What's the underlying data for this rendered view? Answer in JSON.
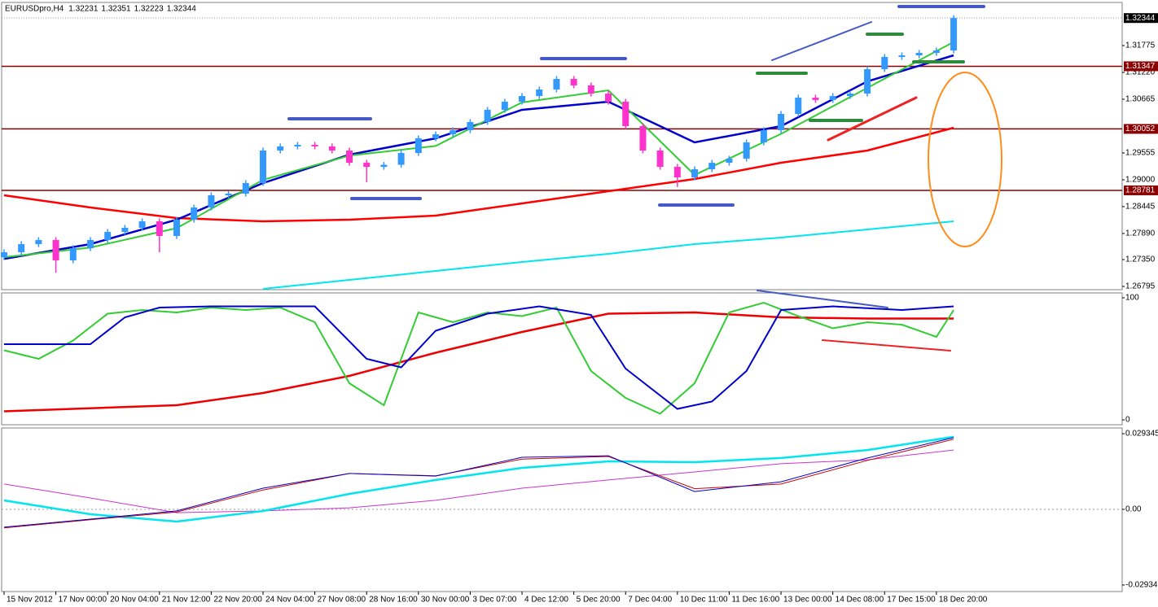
{
  "chart_data": [
    {
      "type": "candlestick",
      "symbol": "EURUSDpro,H4",
      "ohlc": [
        1.32231,
        1.32351,
        1.32223,
        1.32344
      ],
      "xlim": [
        -0.14,
        64.76
      ],
      "xticks": [
        {
          "value": 0,
          "label": "15 Nov 2012"
        },
        {
          "value": 3,
          "label": "17 Nov 00:00"
        },
        {
          "value": 6,
          "label": "20 Nov 04:00"
        },
        {
          "value": 9,
          "label": "21 Nov 12:00"
        },
        {
          "value": 12,
          "label": "22 Nov 20:00"
        },
        {
          "value": 15,
          "label": "24 Nov 04:00"
        },
        {
          "value": 18,
          "label": "27 Nov 08:00"
        },
        {
          "value": 21,
          "label": "28 Nov 16:00"
        },
        {
          "value": 24,
          "label": "30 Nov 00:00"
        },
        {
          "value": 27,
          "label": "3 Dec 07:00"
        },
        {
          "value": 30,
          "label": "4 Dec 12:00"
        },
        {
          "value": 33,
          "label": "5 Dec 20:00"
        },
        {
          "value": 36,
          "label": "7 Dec 04:00"
        },
        {
          "value": 39,
          "label": "10 Dec 11:00"
        },
        {
          "value": 42,
          "label": "11 Dec 16:00"
        },
        {
          "value": 45,
          "label": "13 Dec 00:00"
        },
        {
          "value": 48,
          "label": "14 Dec 08:00"
        },
        {
          "value": 51,
          "label": "17 Dec 15:00"
        },
        {
          "value": 54,
          "label": "18 Dec 20:00"
        }
      ],
      "ylim": [
        1.26728,
        1.32667
      ],
      "yticks": [
        1.31775,
        {
          "value": 1.3122,
          "label": "1.31220"
        },
        1.30665,
        1.29555,
        {
          "value": 1.29,
          "label": "1.29000"
        },
        1.28445,
        {
          "value": 1.2789,
          "label": "1.27890"
        },
        {
          "value": 1.2735,
          "label": "1.27350"
        },
        1.26795
      ],
      "open": [
        1.274,
        1.27502,
        1.2767,
        1.27754,
        1.27334,
        1.27586,
        1.27754,
        1.27922,
        1.28007,
        1.28141,
        1.27838,
        1.28175,
        1.28427,
        1.2868,
        1.28713,
        1.28932,
        1.29605,
        1.29689,
        1.29723,
        1.2969,
        1.29605,
        1.29352,
        1.29268,
        1.2931,
        1.29554,
        1.29857,
        1.29941,
        1.30025,
        1.30194,
        1.30446,
        1.30614,
        1.30732,
        1.30867,
        1.31085,
        1.30951,
        1.30782,
        1.30614,
        1.3011,
        1.29605,
        1.29268,
        1.2905,
        1.29218,
        1.29352,
        1.29437,
        1.29773,
        1.30025,
        1.30362,
        1.30698,
        1.3065,
        1.30732,
        1.30782,
        1.31287,
        1.3154,
        1.31573,
        1.31624,
        1.31674
      ],
      "high": [
        1.27562,
        1.2773,
        1.27814,
        1.27814,
        1.27646,
        1.27814,
        1.27982,
        1.28067,
        1.28201,
        1.28201,
        1.28235,
        1.28487,
        1.2874,
        1.28773,
        1.28992,
        1.29665,
        1.29749,
        1.29783,
        1.29783,
        1.2975,
        1.29665,
        1.29412,
        1.2937,
        1.29614,
        1.29917,
        1.30001,
        1.30085,
        1.30254,
        1.30506,
        1.30674,
        1.30792,
        1.30927,
        1.31145,
        1.31145,
        1.31011,
        1.30842,
        1.30674,
        1.3017,
        1.29665,
        1.29328,
        1.29278,
        1.29412,
        1.29497,
        1.29833,
        1.30085,
        1.30422,
        1.30758,
        1.30758,
        1.30792,
        1.30842,
        1.31347,
        1.316,
        1.31633,
        1.31684,
        1.31734,
        1.32404
      ],
      "low": [
        1.2734,
        1.27442,
        1.2761,
        1.2708,
        1.27274,
        1.27526,
        1.27694,
        1.27862,
        1.27947,
        1.275,
        1.27778,
        1.28115,
        1.28367,
        1.2862,
        1.28653,
        1.28872,
        1.29545,
        1.29629,
        1.2963,
        1.29545,
        1.29292,
        1.2895,
        1.29208,
        1.2925,
        1.29494,
        1.29797,
        1.29881,
        1.29965,
        1.30134,
        1.30386,
        1.30554,
        1.30672,
        1.30807,
        1.30891,
        1.30722,
        1.30554,
        1.3005,
        1.29545,
        1.29208,
        1.2885,
        1.2899,
        1.29158,
        1.29292,
        1.29377,
        1.29713,
        1.29965,
        1.30302,
        1.3059,
        1.3059,
        1.30672,
        1.30722,
        1.31227,
        1.3148,
        1.31513,
        1.31564,
        1.31614
      ],
      "close": [
        1.27502,
        1.2767,
        1.27754,
        1.27334,
        1.27586,
        1.27754,
        1.27922,
        1.28007,
        1.28141,
        1.27838,
        1.28175,
        1.28427,
        1.2868,
        1.28713,
        1.28932,
        1.29605,
        1.29689,
        1.29723,
        1.2969,
        1.29605,
        1.29352,
        1.29268,
        1.2931,
        1.29554,
        1.29857,
        1.29941,
        1.30025,
        1.30194,
        1.30446,
        1.30614,
        1.30732,
        1.30867,
        1.31085,
        1.30951,
        1.30782,
        1.30614,
        1.3011,
        1.29605,
        1.29268,
        1.2905,
        1.29218,
        1.29352,
        1.29437,
        1.29773,
        1.30025,
        1.30362,
        1.30698,
        1.3065,
        1.30732,
        1.30782,
        1.31287,
        1.3154,
        1.31573,
        1.31624,
        1.31674,
        1.32344
      ],
      "up_color": "#3399ff",
      "down_color": "#ff33cc",
      "levels": [
        {
          "value": 1.31347,
          "color": "#8b0000"
        },
        {
          "value": 1.30052,
          "color": "#8b0000"
        },
        {
          "value": 1.28781,
          "color": "#8b0000"
        }
      ],
      "series": [
        {
          "color": "#ff0000",
          "width": 2.5,
          "x": [
            0,
            5,
            10,
            15,
            20,
            25,
            30,
            35,
            40,
            45,
            50,
            55
          ],
          "values": [
            1.2868,
            1.28427,
            1.28208,
            1.28141,
            1.28175,
            1.28259,
            1.28511,
            1.28764,
            1.29016,
            1.29352,
            1.29605,
            1.30076
          ]
        },
        {
          "color": "#00e5ee",
          "width": 2,
          "x": [
            15,
            20,
            25,
            30,
            35,
            40,
            45,
            50,
            55
          ],
          "values": [
            1.26745,
            1.2693,
            1.27115,
            1.273,
            1.27468,
            1.2767,
            1.27805,
            1.27973,
            1.28141
          ]
        },
        {
          "color": "#0000cc",
          "width": 2.5,
          "x": [
            0,
            5,
            10,
            15,
            20,
            25,
            30,
            35,
            40,
            45,
            50,
            55
          ],
          "values": [
            1.27366,
            1.2767,
            1.28175,
            1.28932,
            1.2952,
            1.29857,
            1.30446,
            1.30614,
            1.29773,
            1.3011,
            1.31035,
            1.31573
          ]
        },
        {
          "color": "#33cc33",
          "width": 2,
          "x": [
            0,
            5,
            10,
            15,
            20,
            25,
            30,
            35,
            40,
            45,
            50,
            55
          ],
          "values": [
            1.274,
            1.276,
            1.28,
            1.29,
            1.295,
            1.297,
            1.306,
            1.3085,
            1.291,
            1.2995,
            1.309,
            1.3185
          ]
        }
      ]
    },
    {
      "type": "line",
      "ylim": [
        -4,
        104
      ],
      "yticks": [
        100,
        0
      ],
      "series": [
        {
          "color": "#ee0000",
          "width": 2.5,
          "x": [
            0,
            10,
            15,
            20,
            25,
            30,
            35,
            40,
            45,
            50,
            55
          ],
          "values": [
            7,
            12,
            22,
            36,
            55,
            72,
            87,
            88,
            84,
            83,
            83
          ]
        },
        {
          "color": "#33cc33",
          "width": 2,
          "x": [
            0,
            2,
            4,
            6,
            8,
            10,
            12,
            14,
            16,
            18,
            20,
            22,
            24,
            26,
            28,
            30,
            32,
            34,
            36,
            38,
            40,
            42,
            44,
            46,
            48,
            50,
            52,
            54,
            55
          ],
          "values": [
            57,
            50,
            65,
            87,
            90,
            88,
            92,
            90,
            92,
            80,
            30,
            12,
            88,
            80,
            88,
            85,
            92,
            40,
            18,
            5,
            30,
            88,
            96,
            85,
            75,
            80,
            78,
            68,
            90
          ]
        },
        {
          "color": "#0000cc",
          "width": 2,
          "x": [
            0,
            5,
            7,
            9,
            12,
            15,
            18,
            21,
            23,
            25,
            28,
            31,
            34,
            36,
            39,
            41,
            43,
            45,
            48,
            52,
            55
          ],
          "values": [
            62,
            62,
            84,
            92,
            93,
            93,
            93,
            50,
            43,
            73,
            87,
            93,
            86,
            42,
            9,
            15,
            40,
            90,
            93,
            90,
            93
          ]
        }
      ]
    },
    {
      "type": "line",
      "ylim": [
        -0.03187,
        0.03155
      ],
      "yticks": [
        0.029345,
        {
          "value": 0,
          "label": "0.00"
        },
        -0.02934
      ],
      "series": [
        {
          "color": "#cc33cc",
          "width": 1,
          "x": [
            0,
            5,
            10,
            15,
            20,
            25,
            30,
            35,
            40,
            45,
            50,
            55
          ],
          "values": [
            0.0098,
            0.0044,
            -0.0013,
            -0.0006,
            0.0006,
            0.0035,
            0.0082,
            0.0114,
            0.0145,
            0.0177,
            0.0192,
            0.023
          ]
        },
        {
          "color": "#00e5ee",
          "width": 2.5,
          "x": [
            0,
            5,
            10,
            15,
            20,
            25,
            30,
            35,
            40,
            45,
            50,
            55
          ],
          "values": [
            0.00347,
            -0.0019,
            -0.00473,
            -0.00063,
            0.006,
            0.0114,
            0.0161,
            0.0186,
            0.0183,
            0.0199,
            0.023,
            0.0281
          ]
        },
        {
          "color": "#cc0000",
          "width": 1,
          "x": [
            0,
            5,
            10,
            15,
            20,
            25,
            30,
            35,
            40,
            45,
            50,
            55
          ],
          "values": [
            -0.0072,
            -0.004,
            -0.001,
            0.0075,
            0.0139,
            0.013,
            0.0195,
            0.0205,
            0.008,
            0.0098,
            0.019,
            0.0272
          ]
        },
        {
          "color": "#0000cc",
          "width": 1,
          "x": [
            0,
            5,
            10,
            15,
            20,
            25,
            30,
            35,
            40,
            45,
            50,
            55
          ],
          "values": [
            -0.0069,
            -0.0038,
            -0.0006,
            0.0082,
            0.0139,
            0.0129,
            0.0202,
            0.0208,
            0.0069,
            0.0107,
            0.0199,
            0.0278
          ]
        }
      ]
    }
  ]
}
